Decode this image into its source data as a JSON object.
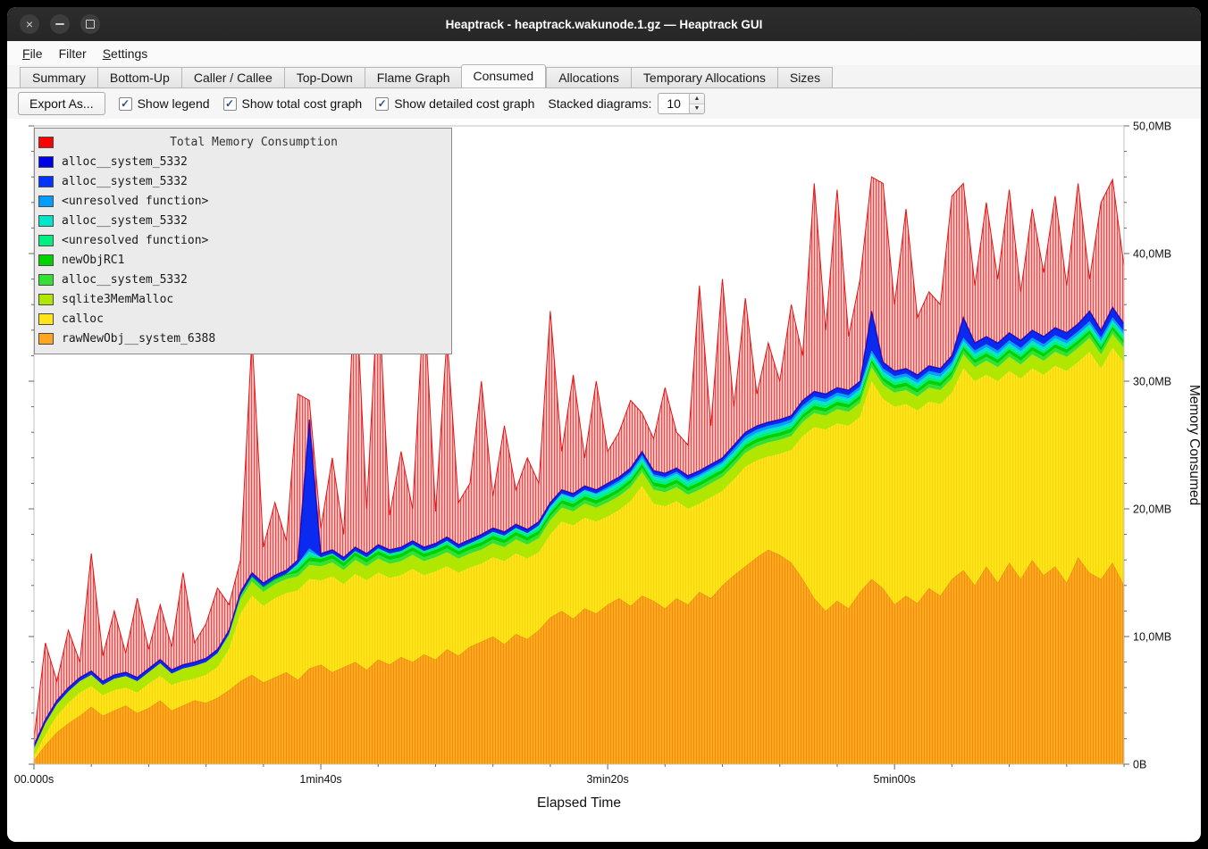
{
  "window": {
    "title": "Heaptrack - heaptrack.wakunode.1.gz — Heaptrack GUI"
  },
  "menu_bar": {
    "items": [
      "File",
      "Filter",
      "Settings"
    ]
  },
  "tabs": {
    "items": [
      "Summary",
      "Bottom-Up",
      "Caller / Callee",
      "Top-Down",
      "Flame Graph",
      "Consumed",
      "Allocations",
      "Temporary Allocations",
      "Sizes"
    ],
    "active": "Consumed"
  },
  "toolbar": {
    "export_button": "Export As...",
    "checkboxes": [
      {
        "label": "Show legend",
        "checked": true
      },
      {
        "label": "Show total cost graph",
        "checked": true
      },
      {
        "label": "Show detailed cost graph",
        "checked": true
      }
    ],
    "stacked_label": "Stacked diagrams:",
    "stacked_value": "10"
  },
  "chart_data": {
    "type": "area",
    "title": "Total Memory Consumption",
    "xlabel": "Elapsed Time",
    "ylabel": "Memory Consumed",
    "x_ticks": [
      "00.000s",
      "1min40s",
      "3min20s",
      "5min00s"
    ],
    "x_tick_seconds": [
      0,
      100,
      200,
      300
    ],
    "y_ticks": [
      "0B",
      "10,0MB",
      "20,0MB",
      "30,0MB",
      "40,0MB",
      "50,0MB"
    ],
    "y_tick_mb": [
      0,
      10,
      20,
      30,
      40,
      50
    ],
    "ylim": [
      0,
      50
    ],
    "xlim_seconds": [
      0,
      380
    ],
    "x_step_seconds": 4,
    "grid": false,
    "legend_position": "top-left",
    "legend": [
      {
        "label": "Total Memory Consumption",
        "color": "#ff0000"
      },
      {
        "label": "alloc__system_5332",
        "color": "#0000e6"
      },
      {
        "label": "alloc__system_5332",
        "color": "#0033ff"
      },
      {
        "label": "<unresolved function>",
        "color": "#009fff"
      },
      {
        "label": "alloc__system_5332",
        "color": "#00e6c8"
      },
      {
        "label": "<unresolved function>",
        "color": "#00ef82"
      },
      {
        "label": "newObjRC1",
        "color": "#00d200"
      },
      {
        "label": "alloc__system_5332",
        "color": "#32e132"
      },
      {
        "label": "sqlite3MemMalloc",
        "color": "#b0e600"
      },
      {
        "label": "calloc",
        "color": "#ffe51a"
      },
      {
        "label": "rawNewObj__system_6388",
        "color": "#ffa520"
      }
    ],
    "stack_boundaries_mb": {
      "orange_top_rawNewObj": [
        0.3,
        1.5,
        2.5,
        3.2,
        3.8,
        4.5,
        3.8,
        4.2,
        4.6,
        4.0,
        4.4,
        5.0,
        4.2,
        4.6,
        5.0,
        4.8,
        5.2,
        5.8,
        6.5,
        7.0,
        6.4,
        6.8,
        7.2,
        6.6,
        7.5,
        7.8,
        7.2,
        7.6,
        8.0,
        7.4,
        8.2,
        7.8,
        8.4,
        8.0,
        8.6,
        8.2,
        9.0,
        8.5,
        9.2,
        9.6,
        10.0,
        9.4,
        10.2,
        9.8,
        10.5,
        11.5,
        12.0,
        11.4,
        12.2,
        11.8,
        12.5,
        13.0,
        12.4,
        13.2,
        12.8,
        12.2,
        13.0,
        12.5,
        13.5,
        13.0,
        14.0,
        14.8,
        15.5,
        16.2,
        16.8,
        16.4,
        15.8,
        14.5,
        13.0,
        12.0,
        12.8,
        12.2,
        13.5,
        14.5,
        13.8,
        12.5,
        13.2,
        12.6,
        13.8,
        13.2,
        14.5,
        15.2,
        14.0,
        15.5,
        14.2,
        15.8,
        14.5,
        16.0,
        14.8,
        15.5,
        14.2,
        16.2,
        15.0,
        14.5,
        15.8,
        14.0
      ],
      "yellow_top_calloc": [
        0.6,
        2.3,
        3.8,
        4.8,
        5.6,
        6.1,
        5.4,
        5.8,
        6.0,
        5.6,
        6.3,
        6.9,
        6.2,
        6.5,
        6.7,
        7.0,
        7.6,
        9.0,
        11.8,
        13.2,
        12.4,
        13.0,
        13.4,
        13.6,
        14.5,
        14.4,
        14.7,
        14.1,
        14.9,
        14.4,
        15.0,
        14.6,
        14.8,
        15.3,
        14.8,
        15.1,
        15.5,
        15.0,
        15.4,
        15.7,
        16.2,
        15.9,
        16.5,
        16.1,
        16.6,
        18.0,
        19.0,
        18.7,
        19.3,
        19.0,
        19.4,
        19.9,
        20.6,
        21.8,
        20.4,
        20.2,
        20.6,
        20.0,
        20.4,
        20.9,
        21.4,
        22.3,
        23.3,
        23.8,
        24.1,
        24.3,
        24.6,
        25.7,
        26.4,
        26.2,
        26.7,
        26.5,
        27.2,
        30.0,
        28.6,
        28.0,
        28.2,
        27.7,
        28.4,
        28.2,
        29.1,
        31.0,
        30.0,
        30.5,
        30.0,
        30.8,
        30.2,
        31.0,
        30.5,
        31.2,
        30.8,
        31.5,
        32.3,
        31.0,
        32.6,
        31.5
      ],
      "blue_top_detailed_stack": [
        1.5,
        3.5,
        5.0,
        6.0,
        6.8,
        7.3,
        6.5,
        7.0,
        7.2,
        6.8,
        7.5,
        8.2,
        7.4,
        7.8,
        8.0,
        8.3,
        9.0,
        10.5,
        13.5,
        15.0,
        14.2,
        14.8,
        15.2,
        16.0,
        27.0,
        16.5,
        16.8,
        16.2,
        17.0,
        16.5,
        17.2,
        16.8,
        17.0,
        17.5,
        17.0,
        17.3,
        17.8,
        17.2,
        17.6,
        18.0,
        18.5,
        18.2,
        18.8,
        18.4,
        19.0,
        20.5,
        21.5,
        21.2,
        21.8,
        21.5,
        22.0,
        22.5,
        23.2,
        24.5,
        23.0,
        22.8,
        23.2,
        22.6,
        23.0,
        23.5,
        24.0,
        25.0,
        26.0,
        26.5,
        26.8,
        27.0,
        27.3,
        28.5,
        29.2,
        29.0,
        29.5,
        29.3,
        30.0,
        35.5,
        31.5,
        30.8,
        31.0,
        30.5,
        31.2,
        31.0,
        32.0,
        35.0,
        33.0,
        33.5,
        33.0,
        33.8,
        33.2,
        34.0,
        33.5,
        34.2,
        33.8,
        34.5,
        35.5,
        34.0,
        35.8,
        34.5
      ],
      "red_total": [
        2.0,
        9.5,
        6.5,
        10.5,
        8.0,
        16.5,
        8.5,
        12.0,
        8.7,
        13.0,
        9.0,
        12.5,
        9.2,
        15.0,
        9.5,
        11.0,
        13.8,
        12.5,
        16.0,
        33.5,
        17.0,
        20.5,
        17.5,
        29.0,
        28.5,
        18.5,
        24.0,
        18.0,
        38.5,
        20.0,
        37.5,
        19.5,
        24.5,
        20.0,
        36.5,
        19.8,
        33.5,
        20.5,
        22.0,
        30.0,
        21.0,
        26.5,
        21.5,
        24.0,
        22.0,
        35.5,
        24.5,
        30.5,
        24.0,
        30.0,
        24.5,
        26.0,
        28.5,
        27.5,
        25.5,
        29.5,
        26.0,
        25.0,
        37.5,
        26.5,
        38.0,
        28.0,
        36.5,
        29.0,
        33.0,
        30.0,
        36.0,
        32.0,
        45.5,
        34.0,
        45.0,
        33.5,
        38.0,
        46.0,
        45.5,
        36.0,
        43.5,
        35.0,
        37.0,
        36.0,
        44.5,
        45.5,
        37.5,
        44.0,
        38.0,
        45.0,
        37.0,
        43.5,
        38.5,
        44.5,
        37.5,
        45.5,
        38.0,
        44.0,
        45.8,
        39.0
      ]
    },
    "thin_bands_between_yellow_and_blue": [
      {
        "name": "sqlite3MemMalloc",
        "color": "#b0e600",
        "mb": 1.1
      },
      {
        "name": "alloc__system_5332",
        "color": "#32e132",
        "mb": 0.3
      },
      {
        "name": "newObjRC1",
        "color": "#00d200",
        "mb": 0.3
      },
      {
        "name": "<unresolved function>",
        "color": "#00ef82",
        "mb": 0.25
      },
      {
        "name": "alloc__system_5332",
        "color": "#00e6c8",
        "mb": 0.2
      },
      {
        "name": "<unresolved function>",
        "color": "#009fff",
        "mb": 0.25
      }
    ]
  }
}
